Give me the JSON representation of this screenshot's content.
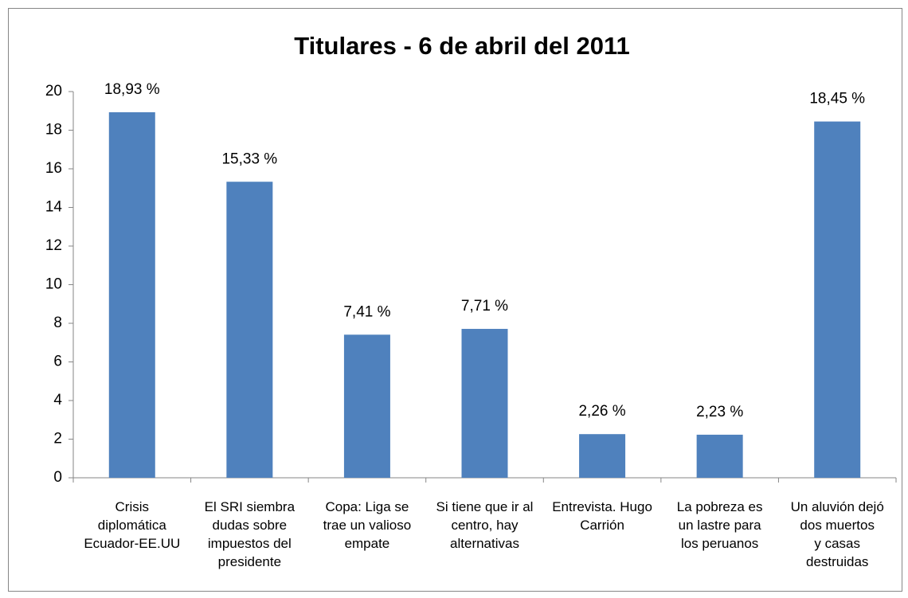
{
  "chart_data": {
    "type": "bar",
    "title": "Titulares - 6 de abril del 2011",
    "categories": [
      "Crisis\ndiplomática\nEcuador-EE.UU",
      "El SRI siembra\ndudas sobre\nimpuestos del\npresidente",
      "Copa: Liga se\ntrae un valioso\nempate",
      "Si tiene que ir al\ncentro, hay\nalternativas",
      "Entrevista. Hugo\nCarrión",
      "La pobreza es\nun lastre para\nlos peruanos",
      "Un aluvión dejó\ndos muertos\ny casas\ndestruidas"
    ],
    "values": [
      18.93,
      15.33,
      7.41,
      7.71,
      2.26,
      2.23,
      18.45
    ],
    "value_labels": [
      "18,93 %",
      "15,33 %",
      "7,41 %",
      "7,71 %",
      "2,26 %",
      "2,23 %",
      "18,45 %"
    ],
    "color": "#4f81bd",
    "ylim": [
      0,
      20
    ],
    "yticks": [
      0,
      2,
      4,
      6,
      8,
      10,
      12,
      14,
      16,
      18,
      20
    ],
    "grid": false
  }
}
